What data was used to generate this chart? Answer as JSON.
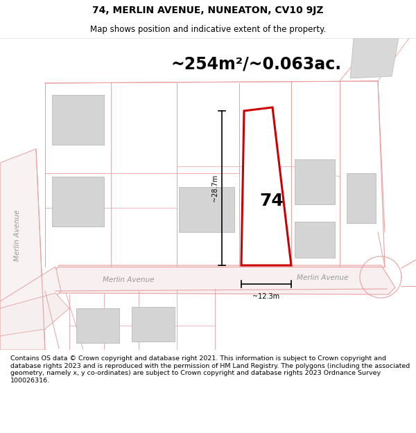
{
  "title": "74, MERLIN AVENUE, NUNEATON, CV10 9JZ",
  "subtitle": "Map shows position and indicative extent of the property.",
  "area_text": "~254m²/~0.063ac.",
  "dimension_h": "~28.7m",
  "dimension_w": "~12.3m",
  "label_74": "74",
  "street_label_bottom_left": "Merlin Avenue",
  "street_label_bottom_right": "Merlin Avenue",
  "street_label_left": "Merlin Avenue",
  "disclaimer": "Contains OS data © Crown copyright and database right 2021. This information is subject to Crown copyright and database rights 2023 and is reproduced with the permission of HM Land Registry. The polygons (including the associated geometry, namely x, y co-ordinates) are subject to Crown copyright and database rights 2023 Ordnance Survey 100026316.",
  "bg_color": "#ffffff",
  "map_bg": "#ffffff",
  "road_color": "#e8a0a0",
  "building_fill": "#d4d4d4",
  "building_edge": "#b8b8b8",
  "red_plot_color": "#cc0000",
  "title_fontsize": 10,
  "subtitle_fontsize": 8.5,
  "area_fontsize": 17,
  "label_fontsize": 18,
  "street_fontsize": 7.5,
  "disclaimer_fontsize": 6.8
}
